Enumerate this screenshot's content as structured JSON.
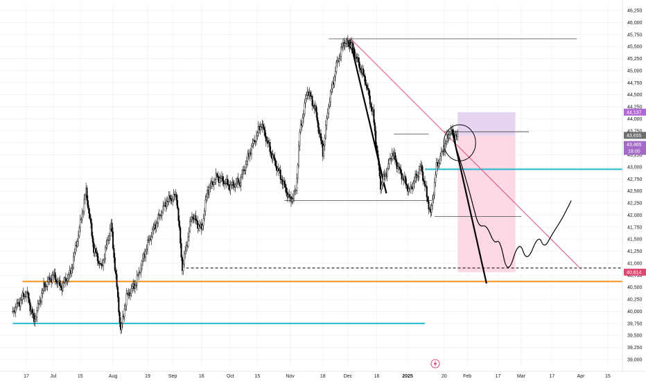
{
  "colors": {
    "candle": "#000000",
    "grid": "#f2f3f5",
    "sep": "#e0e3eb",
    "orange": "#f7931a",
    "cyan": "#22b6d4",
    "pinkLine": "#e0446e",
    "projection_up": "#e6d4f0",
    "projection_down": "#fbd8e4",
    "priceTag_current": "#6f6f6f",
    "priceTag_target": "#e04770",
    "priceTag_top": "#b46ad6",
    "timer_tag": "#a36ac7",
    "logo": "#e0446e"
  },
  "logo": {
    "icon": "lightning-bolt-icon"
  },
  "price_tags": {
    "top": "44,137",
    "current": "43,655",
    "alt": "43,465",
    "timer": "18:00",
    "target": "40,814"
  },
  "chart_data": {
    "type": "candlestick",
    "title": "",
    "xlabel": "",
    "ylabel": "",
    "ylim": [
      38950,
      46300
    ],
    "grid": true,
    "y_ticks": [
      "46,250",
      "46,000",
      "45,750",
      "45,500",
      "45,250",
      "45,000",
      "44,750",
      "44,500",
      "44,250",
      "44,000",
      "43,750",
      "43,500",
      "43,250",
      "43,000",
      "42,750",
      "42,500",
      "42,250",
      "42,000",
      "41,750",
      "41,500",
      "41,250",
      "41,000",
      "40,750",
      "40,500",
      "40,250",
      "40,000",
      "39,750",
      "39,500",
      "39,250",
      "39,000"
    ],
    "x_ticks": [
      {
        "label": "17",
        "date": "2024-06-17"
      },
      {
        "label": "Jul",
        "date": "2024-07-01"
      },
      {
        "label": "15",
        "date": "2024-07-15"
      },
      {
        "label": "Aug",
        "date": "2024-08-01"
      },
      {
        "label": "19",
        "date": "2024-08-19"
      },
      {
        "label": "Sep",
        "date": "2024-09-01"
      },
      {
        "label": "16",
        "date": "2024-09-16"
      },
      {
        "label": "Oct",
        "date": "2024-10-01"
      },
      {
        "label": "15",
        "date": "2024-10-15"
      },
      {
        "label": "Nov",
        "date": "2024-11-01"
      },
      {
        "label": "18",
        "date": "2024-11-18"
      },
      {
        "label": "Dec",
        "date": "2024-12-01"
      },
      {
        "label": "16",
        "date": "2024-12-16"
      },
      {
        "label": "2025",
        "date": "2025-01-01",
        "bold": true
      },
      {
        "label": "20",
        "date": "2025-01-20"
      },
      {
        "label": "Feb",
        "date": "2025-02-01"
      },
      {
        "label": "17",
        "date": "2025-02-17"
      },
      {
        "label": "Mar",
        "date": "2025-03-01"
      },
      {
        "label": "17",
        "date": "2025-03-17"
      },
      {
        "label": "Apr",
        "date": "2025-04-01"
      },
      {
        "label": "15",
        "date": "2025-04-15"
      }
    ],
    "price_path": [
      [
        "2024-06-10",
        40000
      ],
      [
        "2024-06-17",
        40400
      ],
      [
        "2024-06-21",
        39800
      ],
      [
        "2024-06-26",
        40500
      ],
      [
        "2024-07-01",
        40750
      ],
      [
        "2024-07-05",
        40500
      ],
      [
        "2024-07-10",
        40800
      ],
      [
        "2024-07-14",
        41600
      ],
      [
        "2024-07-18",
        42500
      ],
      [
        "2024-07-22",
        41300
      ],
      [
        "2024-07-26",
        40900
      ],
      [
        "2024-07-31",
        41800
      ],
      [
        "2024-08-05",
        39600
      ],
      [
        "2024-08-08",
        40300
      ],
      [
        "2024-08-13",
        40600
      ],
      [
        "2024-08-19",
        41400
      ],
      [
        "2024-08-23",
        41800
      ],
      [
        "2024-08-29",
        42300
      ],
      [
        "2024-09-03",
        42400
      ],
      [
        "2024-09-06",
        40900
      ],
      [
        "2024-09-11",
        42000
      ],
      [
        "2024-09-16",
        41700
      ],
      [
        "2024-09-19",
        42500
      ],
      [
        "2024-09-24",
        42800
      ],
      [
        "2024-10-01",
        42600
      ],
      [
        "2024-10-06",
        42700
      ],
      [
        "2024-10-11",
        43300
      ],
      [
        "2024-10-17",
        43900
      ],
      [
        "2024-10-22",
        43300
      ],
      [
        "2024-10-27",
        42800
      ],
      [
        "2024-11-01",
        42300
      ],
      [
        "2024-11-04",
        42500
      ],
      [
        "2024-11-06",
        43700
      ],
      [
        "2024-11-10",
        44600
      ],
      [
        "2024-11-14",
        44200
      ],
      [
        "2024-11-18",
        43300
      ],
      [
        "2024-11-21",
        44300
      ],
      [
        "2024-11-25",
        45100
      ],
      [
        "2024-11-29",
        45600
      ],
      [
        "2024-12-03",
        45500
      ],
      [
        "2024-12-06",
        45200
      ],
      [
        "2024-12-10",
        44800
      ],
      [
        "2024-12-14",
        44100
      ],
      [
        "2024-12-18",
        42600
      ],
      [
        "2024-12-21",
        42900
      ],
      [
        "2024-12-24",
        43300
      ],
      [
        "2024-12-28",
        42900
      ],
      [
        "2025-01-02",
        42500
      ],
      [
        "2025-01-08",
        43000
      ],
      [
        "2025-01-13",
        42000
      ],
      [
        "2025-01-16",
        43000
      ],
      [
        "2025-01-20",
        43400
      ],
      [
        "2025-01-23",
        43750
      ],
      [
        "2025-01-27",
        43600
      ]
    ],
    "forecast_path": [
      [
        "2025-01-25",
        43550
      ],
      [
        "2025-01-31",
        42800
      ],
      [
        "2025-02-04",
        42200
      ],
      [
        "2025-02-07",
        41750
      ],
      [
        "2025-02-11",
        41800
      ],
      [
        "2025-02-15",
        41400
      ],
      [
        "2025-02-18",
        41500
      ],
      [
        "2025-02-22",
        40720
      ],
      [
        "2025-02-28",
        41500
      ],
      [
        "2025-03-04",
        41000
      ],
      [
        "2025-03-10",
        41600
      ],
      [
        "2025-03-13",
        41300
      ],
      [
        "2025-03-17",
        41600
      ],
      [
        "2025-03-22",
        41900
      ],
      [
        "2025-03-27",
        42300
      ]
    ],
    "horizontal_levels": [
      {
        "price": 40620,
        "from": "2024-06-15",
        "to": "2025-04-30",
        "style": "orange"
      },
      {
        "price": 39750,
        "from": "2024-06-10",
        "to": "2025-01-10",
        "style": "cyan"
      },
      {
        "price": 42950,
        "from": "2025-01-10",
        "to": "2025-04-30",
        "style": "cyan"
      },
      {
        "price": 40900,
        "from": "2024-09-08",
        "to": "2025-04-30",
        "style": "dashed"
      },
      {
        "price": 45660,
        "from": "2024-11-21",
        "to": "2025-03-30",
        "style": "thin"
      },
      {
        "price": 43730,
        "from": "2025-01-20",
        "to": "2025-03-05",
        "style": "thin"
      },
      {
        "price": 43680,
        "from": "2024-12-25",
        "to": "2025-01-12",
        "style": "thin"
      },
      {
        "price": 41970,
        "from": "2025-01-15",
        "to": "2025-03-01",
        "style": "thin"
      },
      {
        "price": 42300,
        "from": "2024-10-29",
        "to": "2025-01-14",
        "style": "thin"
      }
    ],
    "trend_lines": [
      {
        "from": [
          "2024-12-02",
          45680
        ],
        "to": [
          "2025-04-01",
          40880
        ],
        "style": "pink"
      },
      {
        "from": [
          "2024-12-02",
          45650
        ],
        "to": [
          "2024-12-21",
          42450
        ],
        "style": "bold"
      },
      {
        "from": [
          "2025-01-24",
          43780
        ],
        "to": [
          "2025-02-11",
          40580
        ],
        "style": "bold"
      }
    ],
    "projection_box": {
      "from": "2025-01-27",
      "to": "2025-02-26",
      "upper": 44137,
      "entry": 43655,
      "lower": 40814
    },
    "circle_annotation": {
      "date": "2025-01-27",
      "price": 43500
    }
  }
}
